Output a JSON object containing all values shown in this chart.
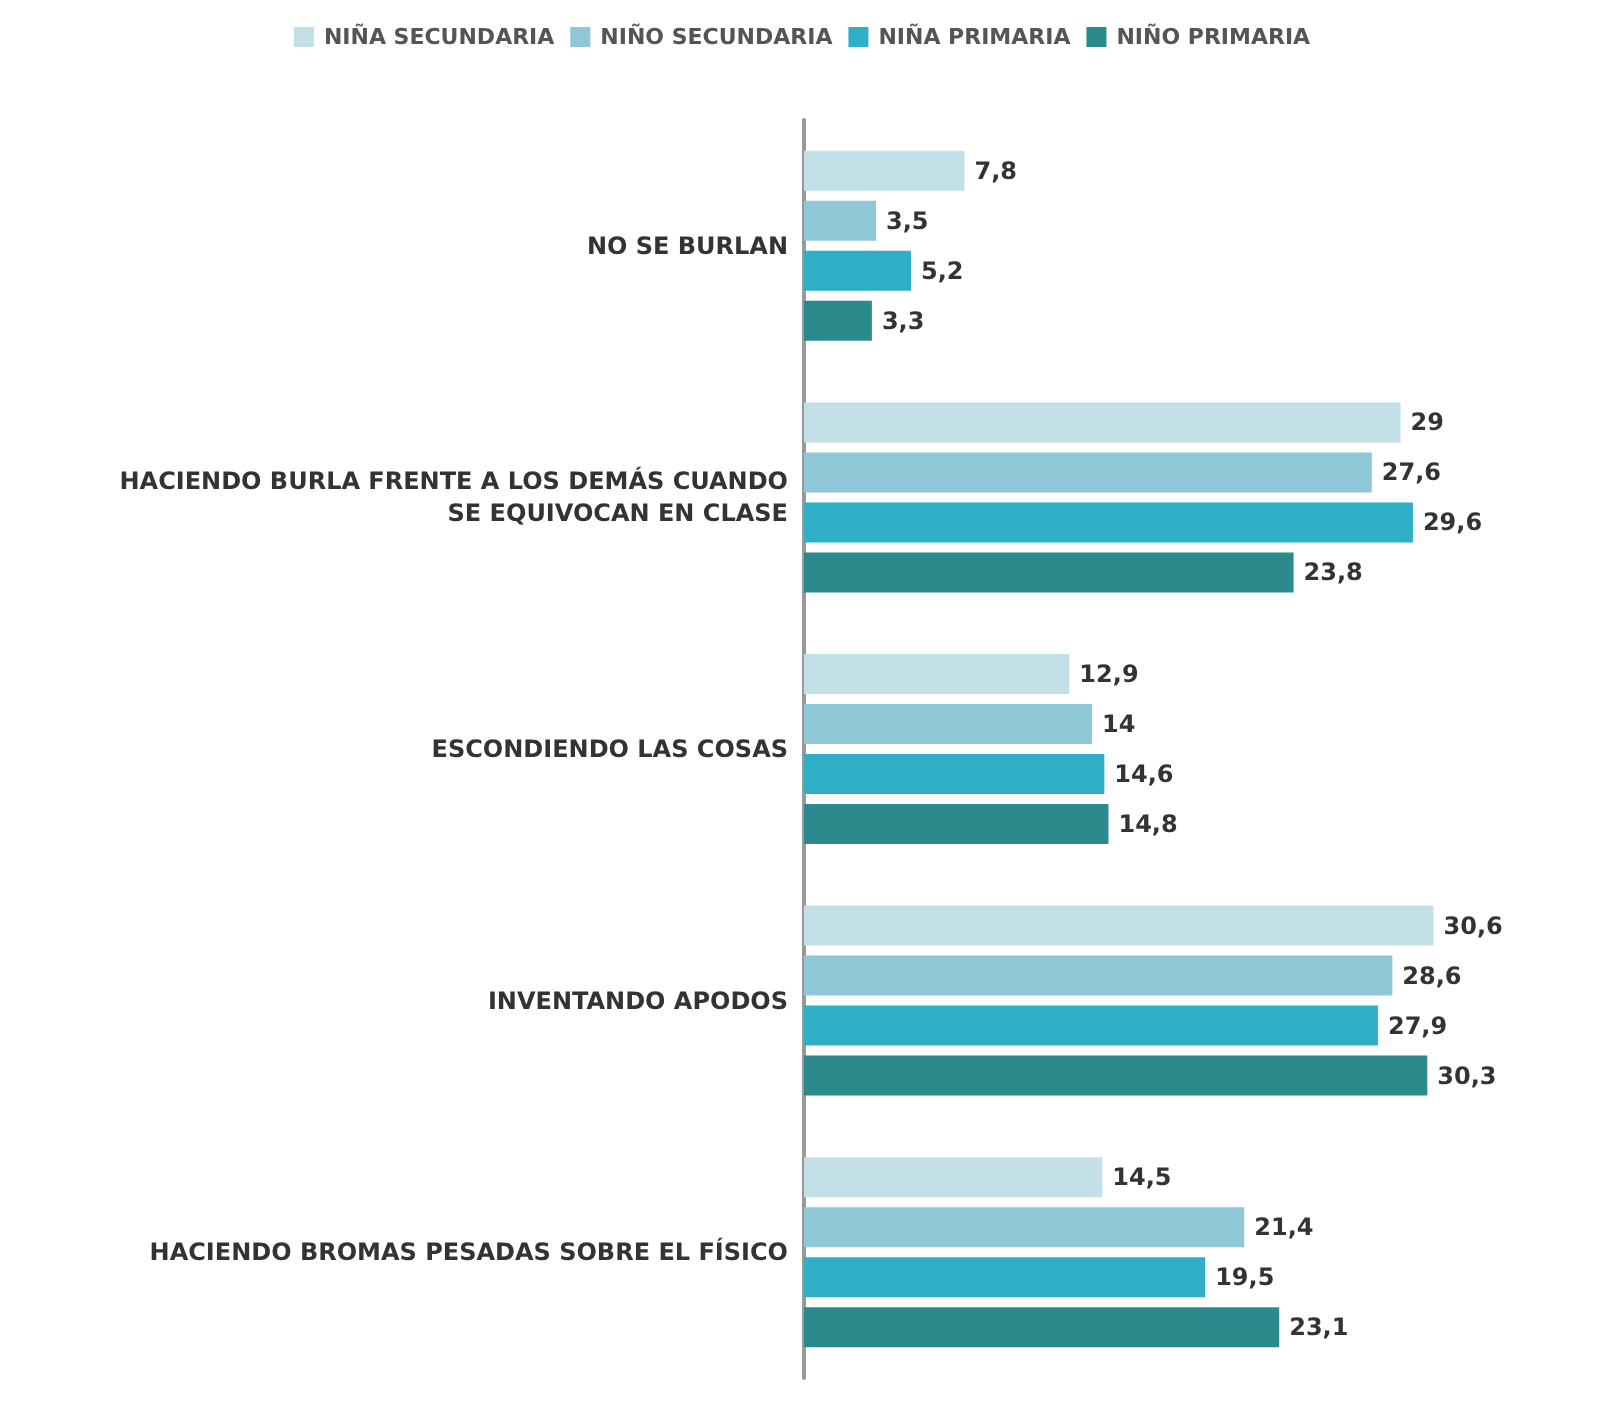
{
  "chart_data": {
    "type": "bar",
    "orientation": "horizontal",
    "categories": [
      "NO SE BURLAN",
      "HACIENDO BURLA FRENTE A LOS DEMÁS CUANDO SE EQUIVOCAN EN CLASE",
      "ESCONDIENDO LAS COSAS",
      "INVENTANDO APODOS",
      "HACIENDO BROMAS PESADAS SOBRE EL FÍSICO"
    ],
    "series": [
      {
        "name": "NIÑA SECUNDARIA",
        "color": "#c3e0e9",
        "values": [
          7.8,
          29,
          12.9,
          30.6,
          14.5
        ],
        "value_labels": [
          "7,8",
          "29",
          "12,9",
          "30,6",
          "14,5"
        ]
      },
      {
        "name": "NIÑO SECUNDARIA",
        "color": "#8ec8d6",
        "values": [
          3.5,
          27.6,
          14,
          28.6,
          21.4
        ],
        "value_labels": [
          "3,5",
          "27,6",
          "14",
          "28,6",
          "21,4"
        ]
      },
      {
        "name": "NIÑA PRIMARIA",
        "color": "#2eafc6",
        "values": [
          5.2,
          29.6,
          14.6,
          27.9,
          19.5
        ],
        "value_labels": [
          "5,2",
          "29,6",
          "14,6",
          "27,9",
          "19,5"
        ]
      },
      {
        "name": "NIÑO PRIMARIA",
        "color": "#2d8a8c",
        "values": [
          3.3,
          23.8,
          14.8,
          30.3,
          23.1
        ],
        "value_labels": [
          "3,3",
          "23,8",
          "14,8",
          "30,3",
          "23,1"
        ]
      }
    ],
    "legend": "top",
    "grid": false
  }
}
